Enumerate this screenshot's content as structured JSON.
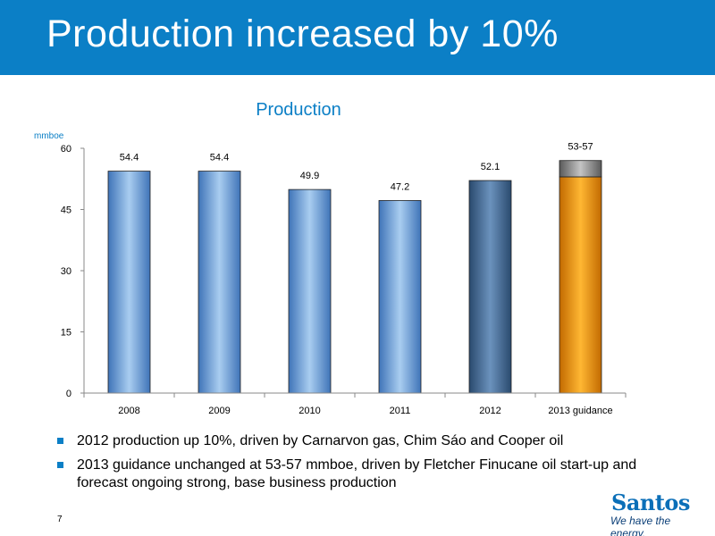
{
  "slide": {
    "title": "Production increased by 10%",
    "page_number": "7"
  },
  "chart_data": {
    "type": "bar",
    "title": "Production",
    "ylabel": "mmboe",
    "xlabel": "",
    "categories": [
      "2008",
      "2009",
      "2010",
      "2011",
      "2012",
      "2013 guidance"
    ],
    "values": [
      54.4,
      54.4,
      49.9,
      47.2,
      52.1,
      null
    ],
    "data_labels": [
      "54.4",
      "54.4",
      "49.9",
      "47.2",
      "52.1",
      "53-57"
    ],
    "guidance_range": {
      "category": "2013 guidance",
      "low": 53,
      "high": 57
    },
    "ylim": [
      0,
      60
    ],
    "yticks": [
      0,
      15,
      30,
      45,
      60
    ],
    "grid": false,
    "colors": {
      "historical_bar": "#79a9d9",
      "last_actual_bar": "#4a6e95",
      "guidance_bar": "#f59a00",
      "guidance_range": "#8a8a8a"
    }
  },
  "bullets": [
    "2012 production up 10%, driven by Carnarvon gas, Chim Sáo and Cooper oil",
    "2013 guidance unchanged at 53-57 mmboe, driven by Fletcher Finucane oil start-up and forecast ongoing strong, base business production"
  ],
  "logo": {
    "name": "Santos",
    "tagline": "We have the energy."
  }
}
